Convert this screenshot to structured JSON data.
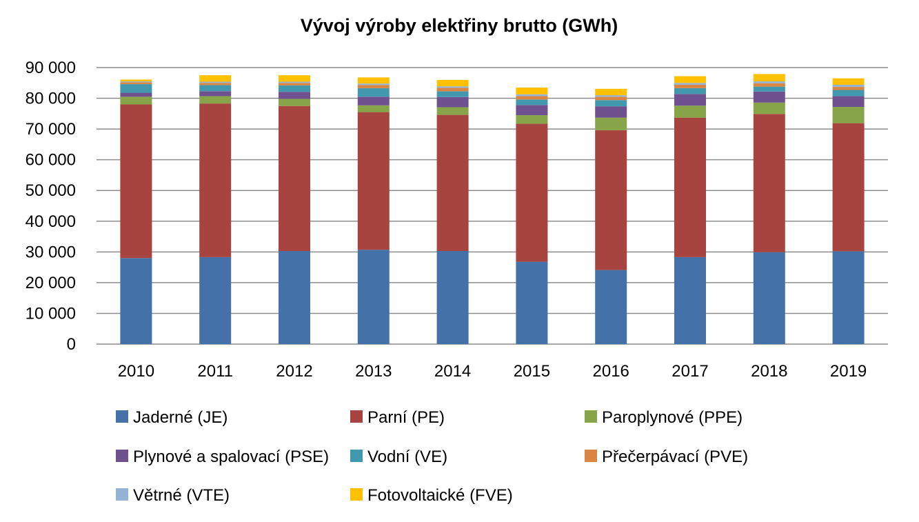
{
  "chart_data": {
    "type": "bar",
    "stacked": true,
    "title": "Vývoj výroby elektřiny brutto (GWh)",
    "xlabel": "",
    "ylabel": "",
    "categories": [
      "2010",
      "2011",
      "2012",
      "2013",
      "2014",
      "2015",
      "2016",
      "2017",
      "2018",
      "2019"
    ],
    "ylim": [
      0,
      90000
    ],
    "yticks": [
      0,
      10000,
      20000,
      30000,
      40000,
      50000,
      60000,
      70000,
      80000,
      90000
    ],
    "ytick_labels": [
      "0",
      "10 000",
      "20 000",
      "30 000",
      "40 000",
      "50 000",
      "60 000",
      "70 000",
      "80 000",
      "90 000"
    ],
    "grid": true,
    "legend_position": "bottom",
    "series": [
      {
        "name": "Jaderné (JE)",
        "color": "#4472a8",
        "values": [
          28000,
          28300,
          30300,
          30700,
          30300,
          26800,
          24100,
          28300,
          29900,
          30200
        ]
      },
      {
        "name": "Parní (PE)",
        "color": "#a84440",
        "values": [
          50000,
          50000,
          47200,
          44800,
          44300,
          44900,
          45500,
          45400,
          45000,
          41700
        ]
      },
      {
        "name": "Paroplynové (PPE)",
        "color": "#88a448",
        "values": [
          2500,
          2400,
          2300,
          2200,
          2500,
          2800,
          4100,
          3900,
          3700,
          5300
        ]
      },
      {
        "name": "Plynové a spalovací (PSE)",
        "color": "#6f5190",
        "values": [
          1300,
          1600,
          2300,
          2800,
          3300,
          3300,
          3700,
          3800,
          3600,
          3500
        ]
      },
      {
        "name": "Vodní (VE)",
        "color": "#4299ae",
        "values": [
          2800,
          2000,
          2100,
          2800,
          1900,
          1800,
          2000,
          1900,
          1600,
          2000
        ]
      },
      {
        "name": "Přečerpávací (PVE)",
        "color": "#db8542",
        "values": [
          600,
          700,
          800,
          1000,
          1100,
          1100,
          1100,
          1100,
          1100,
          1000
        ]
      },
      {
        "name": "Větrné (VTE)",
        "color": "#95b3d7",
        "values": [
          300,
          400,
          400,
          500,
          500,
          600,
          500,
          600,
          600,
          700
        ]
      },
      {
        "name": "Fotovoltaické (FVE)",
        "color": "#ffc000",
        "values": [
          600,
          2100,
          2100,
          2000,
          2100,
          2200,
          2100,
          2200,
          2400,
          2100
        ]
      }
    ]
  }
}
